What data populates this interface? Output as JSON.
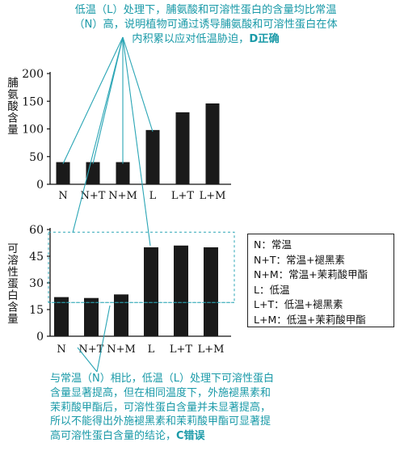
{
  "annotations": {
    "top_line1": "低温（L）处理下，脯氨酸和可溶性蛋白的含量均比常温",
    "top_line2": "（N）高，说明植物可通过诱导脯氨酸和可溶性蛋白在体",
    "top_line3": "内积累以应对低温胁迫，",
    "top_verdict": "D正确",
    "bottom_line1": "与常温（N）相比，低温（L）处理下可溶性蛋白",
    "bottom_line2": "含量显著提高，但在相同温度下，外施褪黑素和",
    "bottom_line3": "茉莉酸甲酯后，可溶性蛋白含量并未显著提高，",
    "bottom_line4": "所以不能得出外施褪黑素和茉莉酸甲酯可显著提",
    "bottom_line5": "高可溶性蛋白含量的结论，",
    "bottom_verdict": "C错误"
  },
  "legend": [
    "N：常温",
    "N+T：常温+褪黑素",
    "N+M：常温+茉莉酸甲酯",
    "L：低温",
    "L+T：低温+褪黑素",
    "L+M：低温+茉莉酸甲酯"
  ],
  "colors": {
    "bar": "#1a1a1a",
    "annotation": "#1a9aa8",
    "highlight_box": "#2aa5b5"
  },
  "chart_data": [
    {
      "type": "bar",
      "categories": [
        "N",
        "N+T",
        "N+M",
        "L",
        "L+T",
        "L+M"
      ],
      "values": [
        40,
        40,
        40,
        98,
        130,
        146
      ],
      "ylabel": "脯氨酸含量",
      "ylim": [
        0,
        200
      ],
      "yticks": [
        0,
        50,
        100,
        150,
        200
      ],
      "grid": false
    },
    {
      "type": "bar",
      "categories": [
        "N",
        "N+T",
        "N+M",
        "L",
        "L+T",
        "L+M"
      ],
      "values": [
        22,
        21.5,
        23.5,
        50,
        51,
        50
      ],
      "ylabel": "可溶性蛋白含量",
      "ylim": [
        0,
        60
      ],
      "yticks": [
        0,
        15,
        30,
        45,
        60
      ],
      "grid": false,
      "legend_placement": "right"
    }
  ]
}
